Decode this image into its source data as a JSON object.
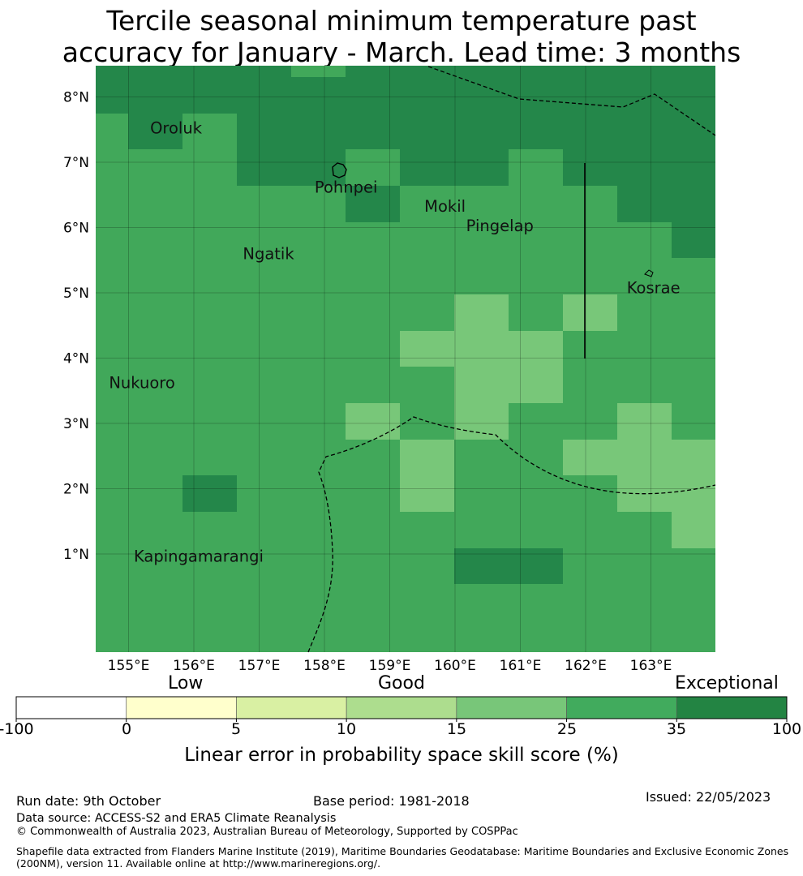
{
  "title": {
    "line1": "Tercile seasonal minimum temperature past",
    "line2": "accuracy for January - March. Lead time: 3 months"
  },
  "map": {
    "lon_labels": [
      "155°E",
      "156°E",
      "157°E",
      "158°E",
      "159°E",
      "160°E",
      "161°E",
      "162°E",
      "163°E"
    ],
    "lat_labels": [
      "8°N",
      "7°N",
      "6°N",
      "5°N",
      "4°N",
      "3°N",
      "2°N",
      "1°N"
    ],
    "places": [
      {
        "name": "Oroluk",
        "lon": 155.33,
        "lat": 7.53
      },
      {
        "name": "Pohnpei",
        "lon": 157.85,
        "lat": 6.62
      },
      {
        "name": "Mokil",
        "lon": 159.53,
        "lat": 6.33
      },
      {
        "name": "Pingelap",
        "lon": 160.17,
        "lat": 6.03
      },
      {
        "name": "Ngatik",
        "lon": 156.75,
        "lat": 5.6
      },
      {
        "name": "Kosrae",
        "lon": 162.63,
        "lat": 5.08
      },
      {
        "name": "Nukuoro",
        "lon": 154.7,
        "lat": 3.63
      },
      {
        "name": "Kapingamarangi",
        "lon": 155.08,
        "lat": 0.97
      }
    ],
    "palette": {
      "c25_35": "#41a85a",
      "c35_100": "#24874a",
      "c15_25": "#78c779"
    },
    "boundary_color": "#000000"
  },
  "colorbar": {
    "band_labels": [
      "Low",
      "Good",
      "Exceptional"
    ],
    "ticks": [
      "-100",
      "0",
      "5",
      "10",
      "15",
      "25",
      "35",
      "100"
    ],
    "colors": [
      "#ffffff",
      "#ffffcc",
      "#d9f0a3",
      "#addd8e",
      "#78c679",
      "#41ab5d",
      "#238443"
    ],
    "label": "Linear error in probability space skill score (%)"
  },
  "footer": {
    "run_date": "Run date: 9th October",
    "base_period": "Base period: 1981-2018",
    "issued": "Issued: 22/05/2023",
    "data_source": "Data source: ACCESS-S2 and ERA5 Climate Reanalysis",
    "copyright": "© Commonwealth of Australia 2023, Australian Bureau of Meteorology, Supported by COSPPac",
    "shapefile1": "Shapefile data extracted from Flanders Marine Institute (2019), Maritime Boundaries Geodatabase: Maritime Boundaries and Exclusive Economic Zones",
    "shapefile2": "(200NM), version 11. Available online at http://www.marineregions.org/."
  }
}
